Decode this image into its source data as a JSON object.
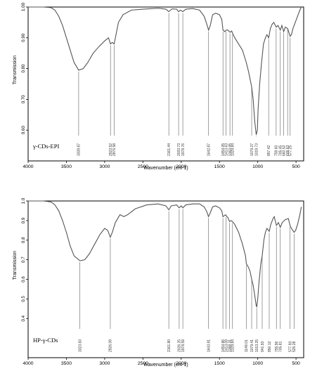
{
  "chart_data": [
    {
      "type": "line",
      "title": "",
      "xlabel": "Wavenumber (cm-1)",
      "ylabel": "Transmission",
      "xlim": [
        4000,
        400
      ],
      "ylim": [
        0.5,
        1.0
      ],
      "x_ticks": [
        "4000",
        "3500",
        "3000",
        "2500",
        "2000",
        "1500",
        "1000",
        "500"
      ],
      "y_ticks": [
        "1.00",
        "0.90",
        "0.80",
        "0.70",
        "0.60"
      ],
      "y_tick_values": [
        1.0,
        0.9,
        0.8,
        0.7,
        0.6
      ],
      "sample_label": "γ-CDs-EPI",
      "series": [
        {
          "points": [
            [
              4000,
              1.0
            ],
            [
              3800,
              1.0
            ],
            [
              3700,
              0.998
            ],
            [
              3650,
              0.99
            ],
            [
              3600,
              0.97
            ],
            [
              3550,
              0.94
            ],
            [
              3500,
              0.9
            ],
            [
              3450,
              0.86
            ],
            [
              3400,
              0.82
            ],
            [
              3339.87,
              0.795
            ],
            [
              3280,
              0.8
            ],
            [
              3220,
              0.82
            ],
            [
              3150,
              0.85
            ],
            [
              3080,
              0.87
            ],
            [
              3000,
              0.89
            ],
            [
              2950,
              0.9
            ],
            [
              2923.52,
              0.88
            ],
            [
              2900,
              0.885
            ],
            [
              2876.58,
              0.88
            ],
            [
              2860,
              0.9
            ],
            [
              2820,
              0.95
            ],
            [
              2760,
              0.975
            ],
            [
              2650,
              0.99
            ],
            [
              2500,
              0.993
            ],
            [
              2300,
              0.996
            ],
            [
              2200,
              0.993
            ],
            [
              2161.44,
              0.985
            ],
            [
              2120,
              0.994
            ],
            [
              2060,
              0.993
            ],
            [
              2033.73,
              0.985
            ],
            [
              2010,
              0.99
            ],
            [
              1978.76,
              0.985
            ],
            [
              1940,
              0.993
            ],
            [
              1850,
              0.995
            ],
            [
              1760,
              0.99
            ],
            [
              1700,
              0.97
            ],
            [
              1660,
              0.94
            ],
            [
              1642.87,
              0.925
            ],
            [
              1620,
              0.94
            ],
            [
              1590,
              0.975
            ],
            [
              1550,
              0.98
            ],
            [
              1500,
              0.975
            ],
            [
              1470,
              0.96
            ],
            [
              1454.05,
              0.925
            ],
            [
              1430,
              0.92
            ],
            [
              1413.63,
              0.925
            ],
            [
              1390,
              0.925
            ],
            [
              1363.05,
              0.918
            ],
            [
              1340,
              0.922
            ],
            [
              1329.84,
              0.915
            ],
            [
              1300,
              0.9
            ],
            [
              1250,
              0.88
            ],
            [
              1200,
              0.86
            ],
            [
              1150,
              0.82
            ],
            [
              1120,
              0.79
            ],
            [
              1079.27,
              0.74
            ],
            [
              1060,
              0.7
            ],
            [
              1040,
              0.63
            ],
            [
              1019.73,
              0.585
            ],
            [
              1005,
              0.6
            ],
            [
              995,
              0.67
            ],
            [
              975,
              0.75
            ],
            [
              950,
              0.82
            ],
            [
              925,
              0.88
            ],
            [
              900,
              0.9
            ],
            [
              880,
              0.91
            ],
            [
              857.42,
              0.9
            ],
            [
              835,
              0.93
            ],
            [
              810,
              0.945
            ],
            [
              790,
              0.95
            ],
            [
              759.6,
              0.935
            ],
            [
              735,
              0.94
            ],
            [
              705.45,
              0.925
            ],
            [
              685,
              0.94
            ],
            [
              660.53,
              0.92
            ],
            [
              640,
              0.935
            ],
            [
              609.63,
              0.93
            ],
            [
              590,
              0.915
            ],
            [
              577.25,
              0.905
            ],
            [
              560,
              0.91
            ],
            [
              540,
              0.93
            ],
            [
              510,
              0.95
            ],
            [
              480,
              0.97
            ],
            [
              450,
              0.99
            ],
            [
              430,
              1.0
            ]
          ]
        }
      ],
      "peaks": [
        {
          "x": 3339.87,
          "label": "3339.87"
        },
        {
          "x": 2923.52,
          "label": "2923.52"
        },
        {
          "x": 2876.58,
          "label": "2876.58"
        },
        {
          "x": 2161.44,
          "label": "2161.44"
        },
        {
          "x": 2033.73,
          "label": "2033.73"
        },
        {
          "x": 1978.76,
          "label": "1978.76"
        },
        {
          "x": 1642.87,
          "label": "1642.87"
        },
        {
          "x": 1454.05,
          "label": "1454.05"
        },
        {
          "x": 1413.63,
          "label": "1413.63"
        },
        {
          "x": 1363.05,
          "label": "1363.05"
        },
        {
          "x": 1329.84,
          "label": "1329.84"
        },
        {
          "x": 1079.27,
          "label": "1079.27"
        },
        {
          "x": 1019.73,
          "label": "1019.73"
        },
        {
          "x": 857.42,
          "label": "857.42"
        },
        {
          "x": 759.6,
          "label": "759.60"
        },
        {
          "x": 705.45,
          "label": "705.45"
        },
        {
          "x": 660.53,
          "label": "660.53"
        },
        {
          "x": 609.63,
          "label": "609.63"
        },
        {
          "x": 577.25,
          "label": "577.25"
        }
      ]
    },
    {
      "type": "line",
      "title": "",
      "xlabel": "Wavenumber (cm-1)",
      "ylabel": "Transmission",
      "xlim": [
        4000,
        400
      ],
      "ylim": [
        0.2,
        1.0
      ],
      "x_ticks": [
        "4000",
        "3500",
        "3000",
        "2500",
        "2000",
        "1500",
        "1000",
        "500"
      ],
      "y_ticks": [
        "1.0",
        "0.9",
        "0.8",
        "0.7",
        "0.6",
        "0.5",
        "0.4"
      ],
      "y_tick_values": [
        1.0,
        0.9,
        0.8,
        0.7,
        0.6,
        0.5,
        0.4
      ],
      "sample_label": "HP-γ-CDs",
      "series": [
        {
          "points": [
            [
              4000,
              1.0
            ],
            [
              3800,
              1.0
            ],
            [
              3700,
              0.995
            ],
            [
              3650,
              0.98
            ],
            [
              3600,
              0.95
            ],
            [
              3550,
              0.9
            ],
            [
              3500,
              0.84
            ],
            [
              3450,
              0.77
            ],
            [
              3400,
              0.72
            ],
            [
              3323.83,
              0.695
            ],
            [
              3260,
              0.7
            ],
            [
              3200,
              0.73
            ],
            [
              3130,
              0.78
            ],
            [
              3060,
              0.83
            ],
            [
              3000,
              0.86
            ],
            [
              2960,
              0.85
            ],
            [
              2926.09,
              0.815
            ],
            [
              2900,
              0.84
            ],
            [
              2860,
              0.89
            ],
            [
              2800,
              0.93
            ],
            [
              2750,
              0.92
            ],
            [
              2700,
              0.93
            ],
            [
              2600,
              0.96
            ],
            [
              2450,
              0.98
            ],
            [
              2300,
              0.985
            ],
            [
              2200,
              0.975
            ],
            [
              2161.8,
              0.955
            ],
            [
              2130,
              0.975
            ],
            [
              2060,
              0.98
            ],
            [
              2026.25,
              0.965
            ],
            [
              2000,
              0.975
            ],
            [
              1978.59,
              0.965
            ],
            [
              1940,
              0.98
            ],
            [
              1850,
              0.985
            ],
            [
              1760,
              0.985
            ],
            [
              1700,
              0.97
            ],
            [
              1665,
              0.945
            ],
            [
              1643.81,
              0.92
            ],
            [
              1620,
              0.94
            ],
            [
              1590,
              0.97
            ],
            [
              1550,
              0.975
            ],
            [
              1500,
              0.965
            ],
            [
              1470,
              0.95
            ],
            [
              1454.86,
              0.92
            ],
            [
              1420,
              0.93
            ],
            [
              1413.09,
              0.925
            ],
            [
              1390,
              0.915
            ],
            [
              1368.31,
              0.895
            ],
            [
              1350,
              0.9
            ],
            [
              1329.84,
              0.895
            ],
            [
              1300,
              0.88
            ],
            [
              1250,
              0.84
            ],
            [
              1200,
              0.78
            ],
            [
              1160,
              0.72
            ],
            [
              1149.01,
              0.68
            ],
            [
              1120,
              0.66
            ],
            [
              1100,
              0.64
            ],
            [
              1079.41,
              0.6
            ],
            [
              1060,
              0.57
            ],
            [
              1040,
              0.52
            ],
            [
              1020,
              0.465
            ],
            [
              1013.25,
              0.46
            ],
            [
              1000,
              0.5
            ],
            [
              985,
              0.58
            ],
            [
              960,
              0.68
            ],
            [
              941.93,
              0.72
            ],
            [
              920,
              0.8
            ],
            [
              900,
              0.84
            ],
            [
              880,
              0.86
            ],
            [
              850.12,
              0.845
            ],
            [
              830,
              0.88
            ],
            [
              800,
              0.91
            ],
            [
              785,
              0.92
            ],
            [
              755.96,
              0.875
            ],
            [
              730,
              0.89
            ],
            [
              705.81,
              0.865
            ],
            [
              680,
              0.89
            ],
            [
              640,
              0.905
            ],
            [
              600,
              0.91
            ],
            [
              577.93,
              0.875
            ],
            [
              560,
              0.86
            ],
            [
              525.28,
              0.84
            ],
            [
              505,
              0.85
            ],
            [
              480,
              0.88
            ],
            [
              450,
              0.93
            ],
            [
              430,
              0.97
            ]
          ]
        }
      ],
      "peaks": [
        {
          "x": 3323.83,
          "label": "3323.83"
        },
        {
          "x": 2926.09,
          "label": "2926.09"
        },
        {
          "x": 2161.8,
          "label": "2161.80"
        },
        {
          "x": 2026.25,
          "label": "2026.25"
        },
        {
          "x": 1978.59,
          "label": "1978.59"
        },
        {
          "x": 1643.81,
          "label": "1643.81"
        },
        {
          "x": 1454.86,
          "label": "1454.86"
        },
        {
          "x": 1413.09,
          "label": "1413.09"
        },
        {
          "x": 1368.31,
          "label": "1368.31"
        },
        {
          "x": 1329.84,
          "label": "1329.84"
        },
        {
          "x": 1149.01,
          "label": "1149.01"
        },
        {
          "x": 1079.41,
          "label": "1079.41"
        },
        {
          "x": 1013.25,
          "label": "1013.25"
        },
        {
          "x": 941.93,
          "label": "941.93"
        },
        {
          "x": 850.12,
          "label": "850.12"
        },
        {
          "x": 755.96,
          "label": "755.96"
        },
        {
          "x": 705.81,
          "label": "705.81"
        },
        {
          "x": 577.93,
          "label": "577.93"
        },
        {
          "x": 525.28,
          "label": "525.28"
        }
      ]
    }
  ]
}
